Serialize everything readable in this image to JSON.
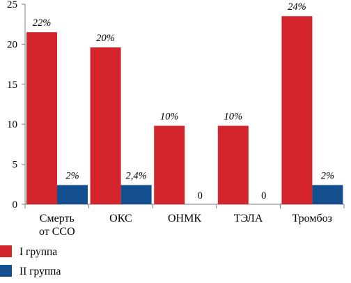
{
  "chart_data": {
    "type": "bar",
    "title": "",
    "xlabel": "",
    "ylabel": "",
    "ylim": [
      0,
      25
    ],
    "yticks": [
      0,
      5,
      10,
      15,
      20,
      25
    ],
    "grid": false,
    "legend_position": "bottom-left",
    "categories": [
      [
        "Смерть",
        "от ССО"
      ],
      [
        "ОКС"
      ],
      [
        "ОНМК"
      ],
      [
        "ТЭЛА"
      ],
      [
        "Тромбоз"
      ]
    ],
    "series": [
      {
        "name": "I группа",
        "color": "#d4242c",
        "values": [
          21.5,
          19.6,
          9.8,
          9.8,
          23.5
        ],
        "labels": [
          "22%",
          "20%",
          "10%",
          "10%",
          "24%"
        ]
      },
      {
        "name": "II группа",
        "color": "#134f8e",
        "values": [
          2.4,
          2.4,
          0,
          0,
          2.4
        ],
        "labels": [
          "2%",
          "2,4%",
          "0",
          "0",
          "2%"
        ]
      }
    ]
  }
}
